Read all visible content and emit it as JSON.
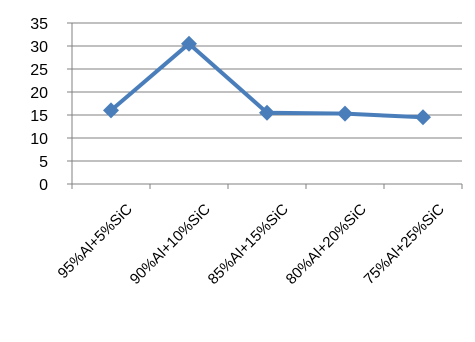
{
  "chart_data": {
    "type": "line",
    "title": "",
    "xlabel": "",
    "ylabel": "",
    "categories": [
      "95%Al+5%SiC",
      "90%Al+10%SiC",
      "85%Al+15%SiC",
      "80%Al+20%SiC",
      "75%Al+25%SiC"
    ],
    "series": [
      {
        "values": [
          16,
          30.5,
          15.5,
          15.3,
          14.5
        ]
      }
    ],
    "ylim": [
      0,
      35
    ],
    "yticks": [
      "0",
      "5",
      "10",
      "15",
      "20",
      "25",
      "30",
      "35"
    ],
    "grid": true,
    "legend": "none",
    "colors": {
      "line": "#4a7ebb",
      "marker": "#4a7ebb",
      "grid": "#808080",
      "axis": "#808080",
      "text": "#000000"
    }
  }
}
